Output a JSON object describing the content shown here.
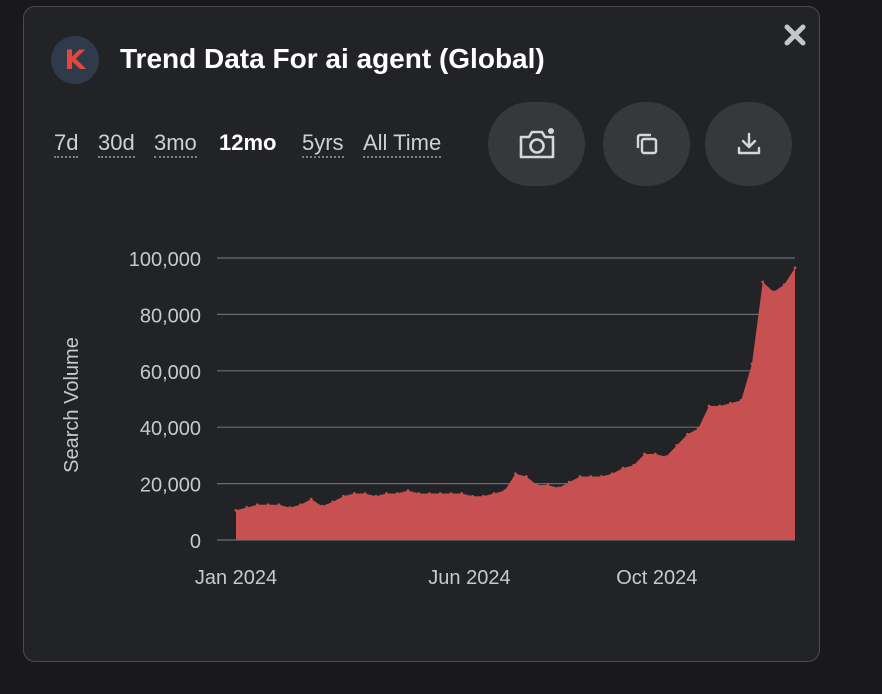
{
  "header": {
    "avatar_letter": "K",
    "title": "Trend Data For ai agent (Global)"
  },
  "range_tabs": [
    {
      "label": "7d",
      "active": false
    },
    {
      "label": "30d",
      "active": false
    },
    {
      "label": "3mo",
      "active": false
    },
    {
      "label": "12mo",
      "active": true
    },
    {
      "label": "5yrs",
      "active": false
    },
    {
      "label": "All Time",
      "active": false
    }
  ],
  "actions": {
    "screenshot_icon": "camera-icon",
    "copy_icon": "copy-icon",
    "download_icon": "download-icon",
    "close_icon": "close-icon"
  },
  "colors": {
    "area": "#c75050",
    "grid": "#6a6b70",
    "tick_text": "#c8c9cd",
    "background": "#222326"
  },
  "chart_data": {
    "type": "area",
    "ylabel": "Search Volume",
    "xlabel": "",
    "ylim": [
      0,
      100000
    ],
    "y_ticks": [
      0,
      20000,
      40000,
      60000,
      80000,
      100000
    ],
    "y_tick_labels": [
      "0",
      "20,000",
      "40,000",
      "60,000",
      "80,000",
      "100,000"
    ],
    "x_tick_labels": [
      {
        "label": "Jan 2024",
        "date": "2024-01-01"
      },
      {
        "label": "Jun 2024",
        "date": "2024-06-01"
      },
      {
        "label": "Oct 2024",
        "date": "2024-10-01"
      }
    ],
    "grid": true,
    "series": [
      {
        "x": [
          "2024-01-01",
          "2024-01-08",
          "2024-01-15",
          "2024-01-22",
          "2024-01-29",
          "2024-02-05",
          "2024-02-12",
          "2024-02-19",
          "2024-02-26",
          "2024-03-04",
          "2024-03-11",
          "2024-03-18",
          "2024-03-25",
          "2024-04-01",
          "2024-04-08",
          "2024-04-15",
          "2024-04-22",
          "2024-04-29",
          "2024-05-06",
          "2024-05-13",
          "2024-05-20",
          "2024-05-27",
          "2024-06-03",
          "2024-06-10",
          "2024-06-17",
          "2024-06-24",
          "2024-07-01",
          "2024-07-08",
          "2024-07-15",
          "2024-07-22",
          "2024-07-29",
          "2024-08-05",
          "2024-08-12",
          "2024-08-19",
          "2024-08-26",
          "2024-09-02",
          "2024-09-09",
          "2024-09-16",
          "2024-09-23",
          "2024-09-30",
          "2024-10-07",
          "2024-10-14",
          "2024-10-21",
          "2024-10-28",
          "2024-11-04",
          "2024-11-11",
          "2024-11-18",
          "2024-11-25",
          "2024-12-02",
          "2024-12-09",
          "2024-12-16",
          "2024-12-23",
          "2024-12-30"
        ],
        "values": [
          10500,
          11500,
          12500,
          12500,
          12500,
          11500,
          12500,
          14500,
          12000,
          13500,
          15500,
          16500,
          16500,
          15500,
          16500,
          16500,
          17500,
          16500,
          16500,
          16500,
          16500,
          16500,
          15500,
          15500,
          16500,
          17500,
          23500,
          22500,
          19500,
          19500,
          18500,
          20500,
          22500,
          22500,
          22500,
          23500,
          25500,
          26500,
          30500,
          30500,
          29500,
          33500,
          37500,
          39500,
          47500,
          47500,
          48500,
          49500,
          62500,
          91500,
          88000,
          90500,
          96500
        ]
      }
    ]
  }
}
